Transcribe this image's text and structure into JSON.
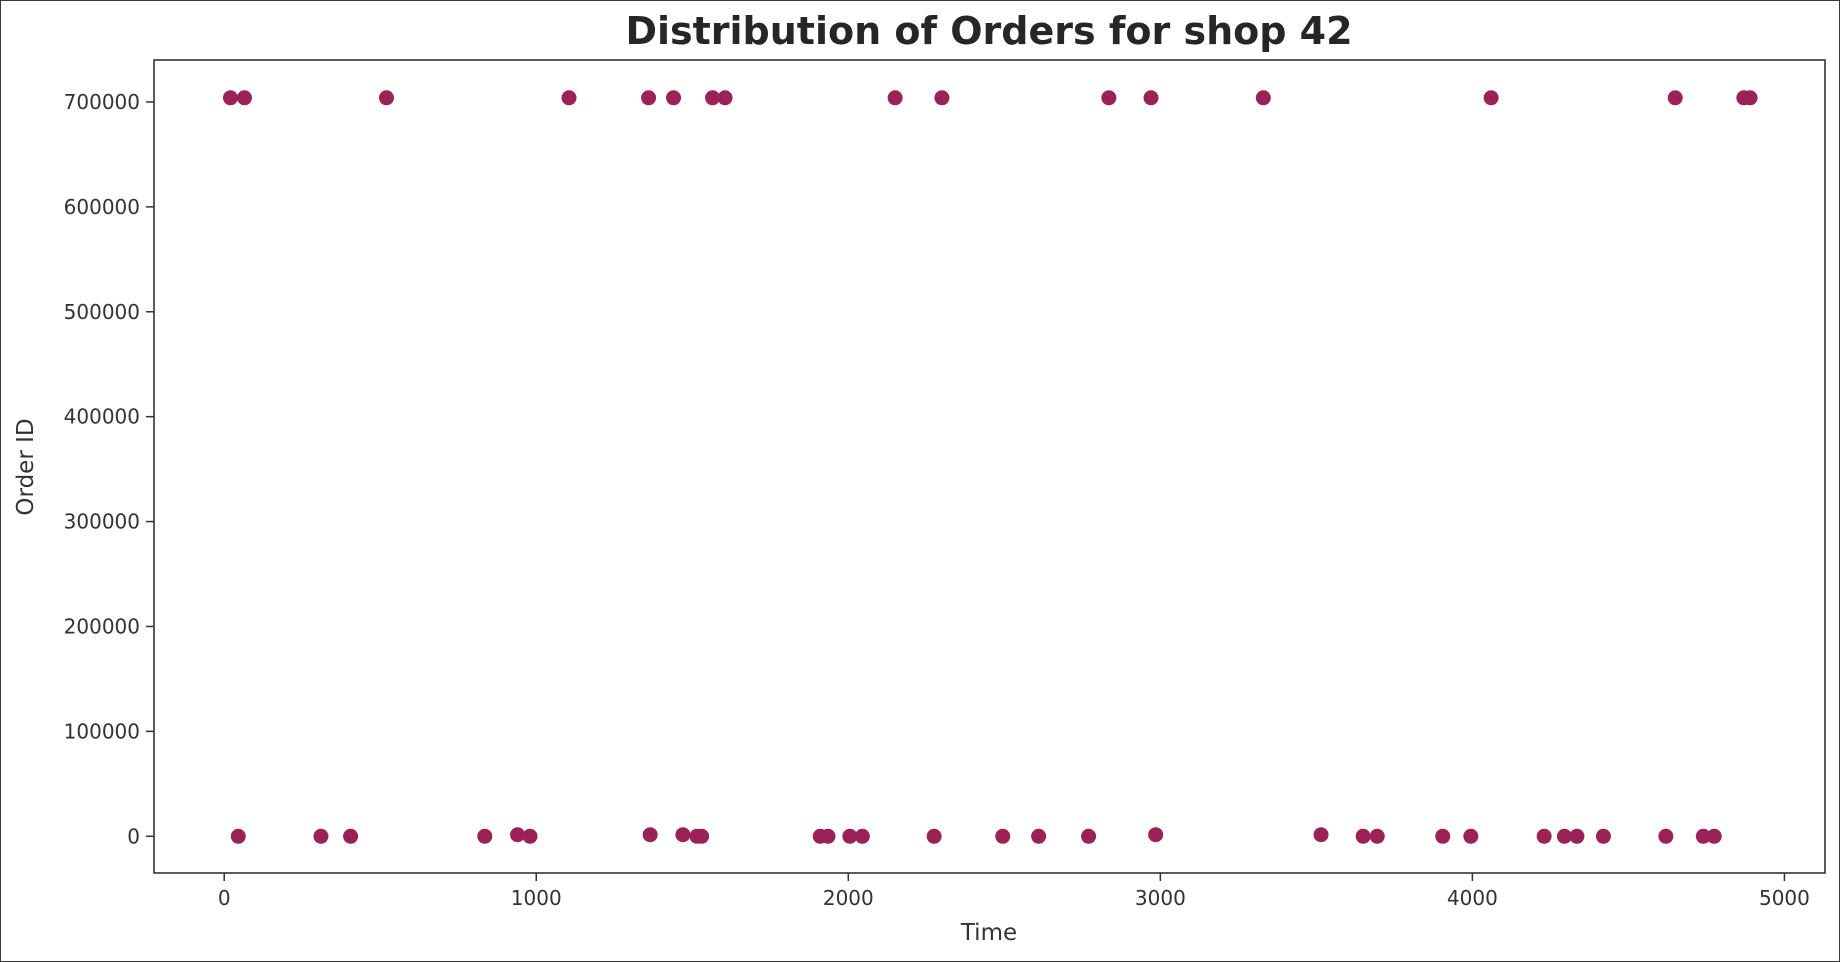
{
  "chart_data": {
    "type": "scatter",
    "title": "Distribution of Orders for shop 42",
    "xlabel": "Time",
    "ylabel": "Order ID",
    "xlim": [
      -225,
      5130
    ],
    "ylim": [
      -35000,
      740000
    ],
    "xticks": [
      0,
      1000,
      2000,
      3000,
      4000,
      5000
    ],
    "yticks": [
      0,
      100000,
      200000,
      300000,
      400000,
      500000,
      600000,
      700000
    ],
    "grid": false,
    "legend": "none",
    "marker_color": "#9b2257",
    "series": [
      {
        "x": [
          20,
          65,
          520,
          1105,
          1360,
          1440,
          1565,
          1605,
          2150,
          2300,
          2835,
          2970,
          3330,
          4060,
          4650,
          4870,
          4890,
          45,
          310,
          405,
          835,
          940,
          980,
          1365,
          1470,
          1515,
          1530,
          1910,
          1935,
          2005,
          2045,
          2275,
          2495,
          2610,
          2770,
          2985,
          3515,
          3650,
          3695,
          3905,
          3995,
          4230,
          4295,
          4335,
          4420,
          4620,
          4740,
          4775
        ],
        "y": [
          704000,
          704000,
          704000,
          704000,
          704000,
          704000,
          704000,
          704000,
          704000,
          704000,
          704000,
          704000,
          704000,
          704000,
          704000,
          704000,
          704000,
          0,
          0,
          0,
          0,
          1500,
          0,
          1500,
          1500,
          0,
          0,
          0,
          0,
          0,
          0,
          0,
          0,
          0,
          0,
          1500,
          1500,
          0,
          0,
          0,
          0,
          0,
          0,
          0,
          0,
          0,
          0,
          0
        ]
      }
    ]
  }
}
